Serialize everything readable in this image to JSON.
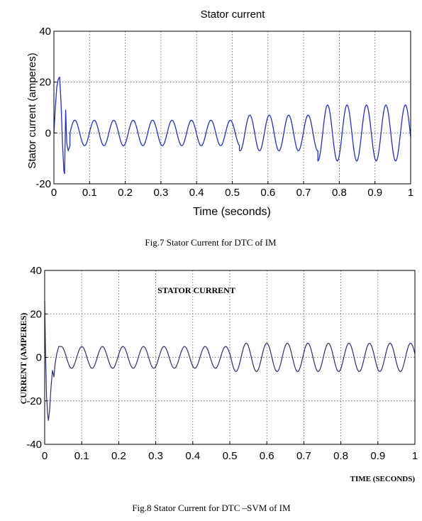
{
  "chart_data": [
    {
      "type": "line",
      "title": "Stator current",
      "xlabel": "Time (seconds)",
      "ylabel": "Stator current (amperes)",
      "xlim": [
        0,
        1
      ],
      "ylim": [
        -20,
        40
      ],
      "xticks": [
        "0",
        "0.1",
        "0.2",
        "0.3",
        "0.4",
        "0.5",
        "0.6",
        "0.7",
        "0.8",
        "0.9",
        "1"
      ],
      "yticks": [
        "-20",
        "0",
        "20",
        "40"
      ],
      "grid": true,
      "caption": "Fig.7 Stator Current for DTC of IM",
      "colors": {
        "line": "#1f2fd6"
      },
      "series": [
        {
          "transient": [
            [
              0,
              0
            ],
            [
              0.004,
              10
            ],
            [
              0.008,
              18
            ],
            [
              0.012,
              21
            ],
            [
              0.016,
              22
            ],
            [
              0.02,
              12
            ],
            [
              0.024,
              -4
            ],
            [
              0.028,
              -15
            ],
            [
              0.03,
              -16
            ],
            [
              0.033,
              9
            ],
            [
              0.036,
              -4
            ],
            [
              0.04,
              -7
            ],
            [
              0.045,
              -5
            ]
          ],
          "segments": [
            {
              "from": 0.045,
              "to": 0.52,
              "amplitude": 5,
              "period": 0.0545,
              "phase": 0.045
            },
            {
              "from": 0.52,
              "to": 0.74,
              "amplitude": 7,
              "period": 0.0545,
              "phase": 0.045
            },
            {
              "from": 0.74,
              "to": 1.0,
              "amplitude": 11,
              "period": 0.0545,
              "phase": 0.045
            }
          ]
        }
      ]
    },
    {
      "type": "line",
      "title": "STATOR CURRENT",
      "xlabel": "TIME (SECONDS)",
      "ylabel": "CURRENT (AMPERES)",
      "xlim": [
        0,
        1
      ],
      "ylim": [
        -40,
        40
      ],
      "xticks": [
        "0",
        "0.1",
        "0.2",
        "0.3",
        "0.4",
        "0.5",
        "0.6",
        "0.7",
        "0.8",
        "0.9",
        "1"
      ],
      "yticks": [
        "-40",
        "-20",
        "0",
        "20",
        "40"
      ],
      "grid": true,
      "caption": "Fig.8 Stator Current for DTC –SVM of IM",
      "colors": {
        "line": "#2b2d7a"
      },
      "series": [
        {
          "transient": [
            [
              0,
              26
            ],
            [
              0.002,
              5
            ],
            [
              0.005,
              -18
            ],
            [
              0.008,
              -26
            ],
            [
              0.01,
              -29
            ],
            [
              0.013,
              -25
            ],
            [
              0.017,
              -14
            ],
            [
              0.021,
              -6
            ],
            [
              0.025,
              -9
            ],
            [
              0.028,
              -3
            ],
            [
              0.033,
              2
            ],
            [
              0.038,
              5
            ],
            [
              0.045,
              5
            ]
          ],
          "segments": [
            {
              "from": 0.045,
              "to": 0.5,
              "amplitude": 5,
              "period": 0.0555,
              "phase": 0.031
            },
            {
              "from": 0.5,
              "to": 1.0,
              "amplitude": 6.5,
              "period": 0.0555,
              "phase": 0.031
            }
          ]
        }
      ]
    }
  ]
}
